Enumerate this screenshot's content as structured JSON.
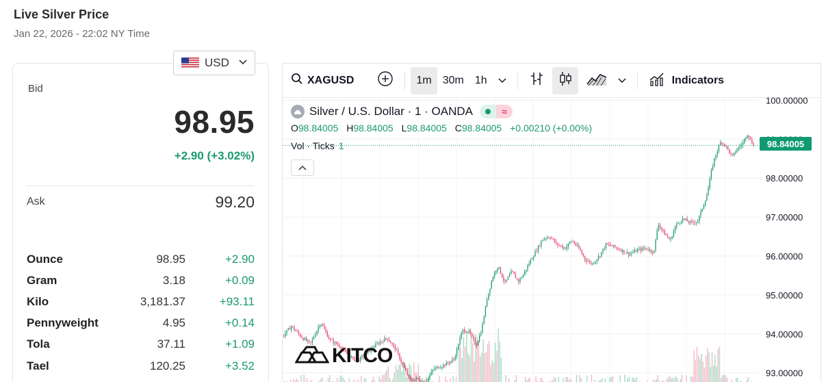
{
  "header": {
    "title": "Live Silver Price",
    "subtitle": "Jan 22, 2026 - 22:02 NY Time"
  },
  "currency": {
    "selected": "USD",
    "icon": "us-flag-icon"
  },
  "quote": {
    "bid_label": "Bid",
    "bid": "98.95",
    "change": "+2.90 (+3.02%)",
    "ask_label": "Ask",
    "ask": "99.20"
  },
  "units": [
    {
      "name": "Ounce",
      "price": "98.95",
      "change": "+2.90"
    },
    {
      "name": "Gram",
      "price": "3.18",
      "change": "+0.09"
    },
    {
      "name": "Kilo",
      "price": "3,181.37",
      "change": "+93.11"
    },
    {
      "name": "Pennyweight",
      "price": "4.95",
      "change": "+0.14"
    },
    {
      "name": "Tola",
      "price": "37.11",
      "change": "+1.09"
    },
    {
      "name": "Tael",
      "price": "120.25",
      "change": "+3.52"
    }
  ],
  "toolbar": {
    "symbol": "XAGUSD",
    "intervals": [
      "1m",
      "30m",
      "1h"
    ],
    "active_interval": "1m",
    "indicators_label": "Indicators"
  },
  "legend": {
    "title": "Silver / U.S. Dollar · 1 · OANDA",
    "ohlc": [
      {
        "k": "O",
        "v": "98.84005"
      },
      {
        "k": "H",
        "v": "98.84005"
      },
      {
        "k": "L",
        "v": "98.84005"
      },
      {
        "k": "C",
        "v": "98.84005"
      }
    ],
    "change": "+0.00210 (+0.00%)",
    "volume_label": "Vol · Ticks",
    "volume_value": "1"
  },
  "last_price_tag": "98.84005",
  "watermark": "KITCO",
  "colors": {
    "up": "#1a9a6c",
    "down": "#e5436b",
    "accent": "#0f9a72"
  },
  "chart_data": {
    "type": "candlestick",
    "symbol": "XAGUSD",
    "interval": "1m",
    "y_ticks": [
      "100.00000",
      "99.00000",
      "98.00000",
      "97.00000",
      "96.00000",
      "95.00000",
      "94.00000",
      "93.00000"
    ],
    "ylim": [
      92.6,
      100.2
    ],
    "last": 98.84005,
    "path": [
      [
        0,
        93.95
      ],
      [
        12,
        94.2
      ],
      [
        28,
        93.9
      ],
      [
        40,
        93.75
      ],
      [
        55,
        94.3
      ],
      [
        68,
        93.85
      ],
      [
        82,
        93.7
      ],
      [
        95,
        93.45
      ],
      [
        108,
        93.3
      ],
      [
        122,
        93.5
      ],
      [
        138,
        93.75
      ],
      [
        152,
        93.9
      ],
      [
        165,
        93.6
      ],
      [
        176,
        93.15
      ],
      [
        186,
        92.8
      ],
      [
        196,
        92.85
      ],
      [
        208,
        92.75
      ],
      [
        220,
        93.1
      ],
      [
        235,
        93.2
      ],
      [
        250,
        93.35
      ],
      [
        262,
        94.1
      ],
      [
        272,
        94.05
      ],
      [
        282,
        93.7
      ],
      [
        290,
        94.1
      ],
      [
        298,
        94.9
      ],
      [
        306,
        95.45
      ],
      [
        314,
        95.75
      ],
      [
        324,
        95.3
      ],
      [
        334,
        95.6
      ],
      [
        344,
        95.35
      ],
      [
        352,
        95.55
      ],
      [
        362,
        95.9
      ],
      [
        372,
        96.2
      ],
      [
        380,
        96.45
      ],
      [
        390,
        96.5
      ],
      [
        400,
        96.3
      ],
      [
        412,
        96.2
      ],
      [
        422,
        96.4
      ],
      [
        432,
        96.2
      ],
      [
        442,
        95.9
      ],
      [
        452,
        95.8
      ],
      [
        462,
        96.0
      ],
      [
        472,
        96.3
      ],
      [
        482,
        96.25
      ],
      [
        494,
        96.15
      ],
      [
        506,
        96.05
      ],
      [
        518,
        96.15
      ],
      [
        530,
        96.2
      ],
      [
        542,
        96.1
      ],
      [
        548,
        96.85
      ],
      [
        556,
        96.6
      ],
      [
        566,
        96.4
      ],
      [
        574,
        96.8
      ],
      [
        584,
        96.95
      ],
      [
        596,
        96.85
      ],
      [
        606,
        96.9
      ],
      [
        614,
        97.3
      ],
      [
        620,
        97.6
      ],
      [
        626,
        98.2
      ],
      [
        632,
        98.6
      ],
      [
        640,
        98.95
      ],
      [
        648,
        98.8
      ],
      [
        656,
        98.55
      ],
      [
        664,
        98.75
      ],
      [
        672,
        98.9
      ],
      [
        678,
        99.15
      ],
      [
        684,
        98.95
      ],
      [
        688,
        98.84
      ]
    ]
  }
}
